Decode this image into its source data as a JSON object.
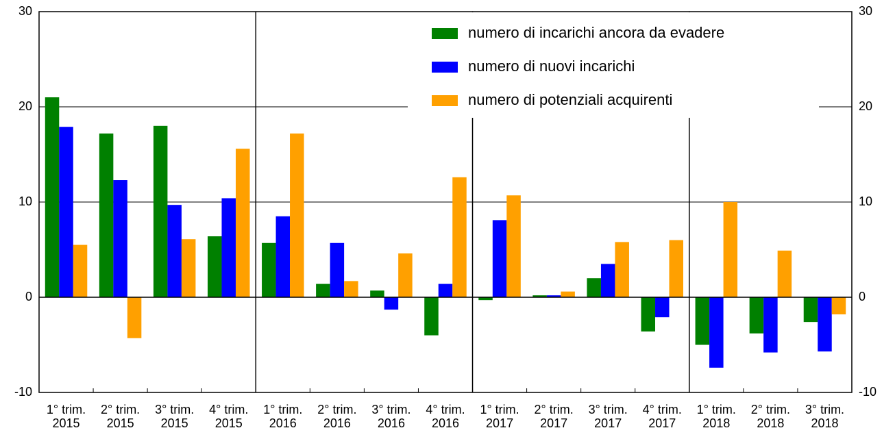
{
  "chart_data": {
    "type": "bar",
    "categories": [
      [
        "1° trim.",
        "2015"
      ],
      [
        "2° trim.",
        "2015"
      ],
      [
        "3° trim.",
        "2015"
      ],
      [
        "4° trim.",
        "2015"
      ],
      [
        "1° trim.",
        "2016"
      ],
      [
        "2° trim.",
        "2016"
      ],
      [
        "3° trim.",
        "2016"
      ],
      [
        "4° trim.",
        "2016"
      ],
      [
        "1° trim.",
        "2017"
      ],
      [
        "2° trim.",
        "2017"
      ],
      [
        "3° trim.",
        "2017"
      ],
      [
        "4° trim.",
        "2017"
      ],
      [
        "1° trim.",
        "2018"
      ],
      [
        "2° trim.",
        "2018"
      ],
      [
        "3° trim.",
        "2018"
      ]
    ],
    "series": [
      {
        "name": "numero di incarichi ancora da evadere",
        "color": "#008000",
        "values": [
          21.0,
          17.2,
          18.0,
          6.4,
          5.7,
          1.4,
          0.7,
          -4.0,
          -0.3,
          0.2,
          2.0,
          -3.6,
          -5.0,
          -3.8,
          -2.6
        ]
      },
      {
        "name": "numero di nuovi incarichi",
        "color": "#0000ff",
        "values": [
          17.9,
          12.3,
          9.7,
          10.4,
          8.5,
          5.7,
          -1.3,
          1.4,
          8.1,
          0.2,
          3.5,
          -2.1,
          -7.4,
          -5.8,
          -5.7
        ]
      },
      {
        "name": "numero di potenziali acquirenti",
        "color": "#ffa000",
        "values": [
          5.5,
          -4.3,
          6.1,
          15.6,
          17.2,
          1.7,
          4.6,
          12.6,
          10.7,
          0.6,
          5.8,
          6.0,
          10.0,
          4.9,
          -1.8
        ]
      }
    ],
    "ylim": [
      -10,
      30
    ],
    "yticks": [
      -10,
      0,
      10,
      20,
      30
    ],
    "grid": true,
    "legend": "top-right"
  }
}
